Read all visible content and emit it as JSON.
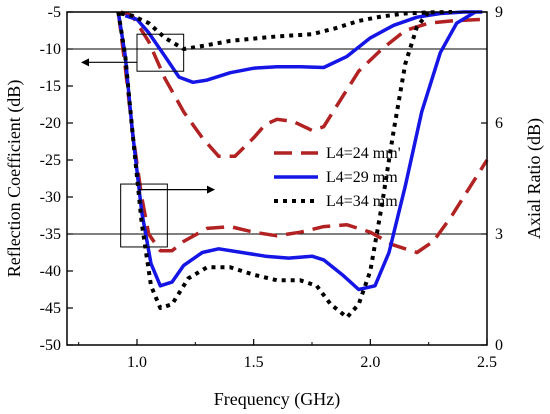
{
  "chart_data": {
    "type": "line",
    "xlabel": "Frequency (GHz)",
    "ylabel_left": "Reflection Coefficient (dB)",
    "ylabel_right": "Axial Ratio (dB)",
    "xlim": [
      0.7,
      2.5
    ],
    "ylim_left": [
      -50,
      -5
    ],
    "ylim_right": [
      0,
      9
    ],
    "x_ticks": [
      1.0,
      1.5,
      2.0,
      2.5
    ],
    "x_tick_labels": [
      "1.0",
      "1.5",
      "2.0",
      "2.5"
    ],
    "y_left_ticks": [
      -5,
      -10,
      -15,
      -20,
      -25,
      -30,
      -35,
      -40,
      -45,
      -50
    ],
    "y_left_tick_labels": [
      "-5",
      "-10",
      "-15",
      "-20",
      "-25",
      "-30",
      "-35",
      "-40",
      "-45",
      "-50"
    ],
    "y_right_ticks": [
      0,
      3,
      6,
      9
    ],
    "y_right_tick_labels": [
      "0",
      "3",
      "6",
      "9"
    ],
    "reference_lines": [
      {
        "axis": "left",
        "value": -10
      },
      {
        "axis": "right",
        "value": 3
      }
    ],
    "legend_position": "center-right",
    "series": [
      {
        "name": "L4=24 mm'",
        "axis": "left",
        "color": "#b22222",
        "style": "dashed",
        "points": [
          [
            0.93,
            -5
          ],
          [
            0.98,
            -5.5
          ],
          [
            1.05,
            -9
          ],
          [
            1.12,
            -14
          ],
          [
            1.2,
            -18.5
          ],
          [
            1.28,
            -22
          ],
          [
            1.35,
            -24.5
          ],
          [
            1.42,
            -24.5
          ],
          [
            1.5,
            -22
          ],
          [
            1.55,
            -20.2
          ],
          [
            1.6,
            -19.5
          ],
          [
            1.67,
            -19.8
          ],
          [
            1.75,
            -21
          ],
          [
            1.8,
            -20.5
          ],
          [
            1.88,
            -16.5
          ],
          [
            1.95,
            -13
          ],
          [
            2.05,
            -10
          ],
          [
            2.15,
            -7.5
          ],
          [
            2.25,
            -6.5
          ],
          [
            2.35,
            -6.2
          ],
          [
            2.48,
            -6
          ]
        ]
      },
      {
        "name": "L4=24 mm'",
        "axis": "right",
        "color": "#b22222",
        "style": "dashed",
        "points": [
          [
            0.92,
            9
          ],
          [
            0.95,
            7.5
          ],
          [
            0.98,
            5.8
          ],
          [
            1.02,
            4.0
          ],
          [
            1.05,
            3.0
          ],
          [
            1.1,
            2.55
          ],
          [
            1.15,
            2.55
          ],
          [
            1.2,
            2.8
          ],
          [
            1.3,
            3.15
          ],
          [
            1.4,
            3.2
          ],
          [
            1.5,
            3.05
          ],
          [
            1.6,
            2.95
          ],
          [
            1.7,
            3.05
          ],
          [
            1.8,
            3.2
          ],
          [
            1.9,
            3.25
          ],
          [
            2.0,
            3.05
          ],
          [
            2.1,
            2.7
          ],
          [
            2.15,
            2.6
          ],
          [
            2.2,
            2.5
          ],
          [
            2.27,
            2.8
          ],
          [
            2.35,
            3.5
          ],
          [
            2.42,
            4.2
          ],
          [
            2.5,
            5.0
          ]
        ]
      },
      {
        "name": "L4=29 mm",
        "axis": "left",
        "color": "#1515e6",
        "style": "solid",
        "points": [
          [
            0.95,
            -5.5
          ],
          [
            1.0,
            -6
          ],
          [
            1.05,
            -7.8
          ],
          [
            1.12,
            -11
          ],
          [
            1.18,
            -13.8
          ],
          [
            1.24,
            -14.5
          ],
          [
            1.3,
            -14.2
          ],
          [
            1.4,
            -13.2
          ],
          [
            1.5,
            -12.6
          ],
          [
            1.6,
            -12.4
          ],
          [
            1.7,
            -12.4
          ],
          [
            1.8,
            -12.5
          ],
          [
            1.9,
            -11
          ],
          [
            2.0,
            -8.5
          ],
          [
            2.1,
            -6.8
          ],
          [
            2.2,
            -5.7
          ],
          [
            2.3,
            -5.2
          ],
          [
            2.4,
            -5
          ],
          [
            2.48,
            -5
          ]
        ]
      },
      {
        "name": "L4=29 mm",
        "axis": "right",
        "color": "#1515e6",
        "style": "solid",
        "points": [
          [
            0.92,
            9
          ],
          [
            0.95,
            7.8
          ],
          [
            0.98,
            5.8
          ],
          [
            1.02,
            3.6
          ],
          [
            1.06,
            2.2
          ],
          [
            1.1,
            1.6
          ],
          [
            1.15,
            1.7
          ],
          [
            1.2,
            2.15
          ],
          [
            1.28,
            2.5
          ],
          [
            1.35,
            2.6
          ],
          [
            1.45,
            2.5
          ],
          [
            1.55,
            2.4
          ],
          [
            1.65,
            2.35
          ],
          [
            1.75,
            2.4
          ],
          [
            1.8,
            2.3
          ],
          [
            1.88,
            1.9
          ],
          [
            1.95,
            1.5
          ],
          [
            2.02,
            1.6
          ],
          [
            2.08,
            2.5
          ],
          [
            2.15,
            4.3
          ],
          [
            2.22,
            6.3
          ],
          [
            2.3,
            7.9
          ],
          [
            2.37,
            8.7
          ],
          [
            2.45,
            9
          ]
        ]
      },
      {
        "name": "L4=34 mm",
        "axis": "left",
        "color": "#000000",
        "style": "dotted",
        "points": [
          [
            0.93,
            -5.2
          ],
          [
            0.98,
            -5.5
          ],
          [
            1.05,
            -6.5
          ],
          [
            1.12,
            -8.5
          ],
          [
            1.2,
            -10
          ],
          [
            1.28,
            -9.6
          ],
          [
            1.4,
            -8.9
          ],
          [
            1.5,
            -8.6
          ],
          [
            1.6,
            -8.3
          ],
          [
            1.75,
            -8.0
          ],
          [
            1.85,
            -7.2
          ],
          [
            1.95,
            -6.2
          ],
          [
            2.05,
            -5.6
          ],
          [
            2.15,
            -5.2
          ],
          [
            2.25,
            -5.05
          ],
          [
            2.35,
            -5
          ]
        ]
      },
      {
        "name": "L4=34 mm",
        "axis": "right",
        "color": "#000000",
        "style": "dotted",
        "points": [
          [
            0.92,
            9
          ],
          [
            0.95,
            7.8
          ],
          [
            0.98,
            5.8
          ],
          [
            1.02,
            3.3
          ],
          [
            1.06,
            1.6
          ],
          [
            1.1,
            1.0
          ],
          [
            1.15,
            1.1
          ],
          [
            1.22,
            1.8
          ],
          [
            1.3,
            2.1
          ],
          [
            1.4,
            2.1
          ],
          [
            1.5,
            1.9
          ],
          [
            1.6,
            1.75
          ],
          [
            1.7,
            1.75
          ],
          [
            1.77,
            1.6
          ],
          [
            1.83,
            1.1
          ],
          [
            1.9,
            0.75
          ],
          [
            1.95,
            1.1
          ],
          [
            2.0,
            2.0
          ],
          [
            2.05,
            3.8
          ],
          [
            2.1,
            5.8
          ],
          [
            2.15,
            7.6
          ],
          [
            2.2,
            8.6
          ],
          [
            2.25,
            9
          ]
        ]
      }
    ]
  }
}
